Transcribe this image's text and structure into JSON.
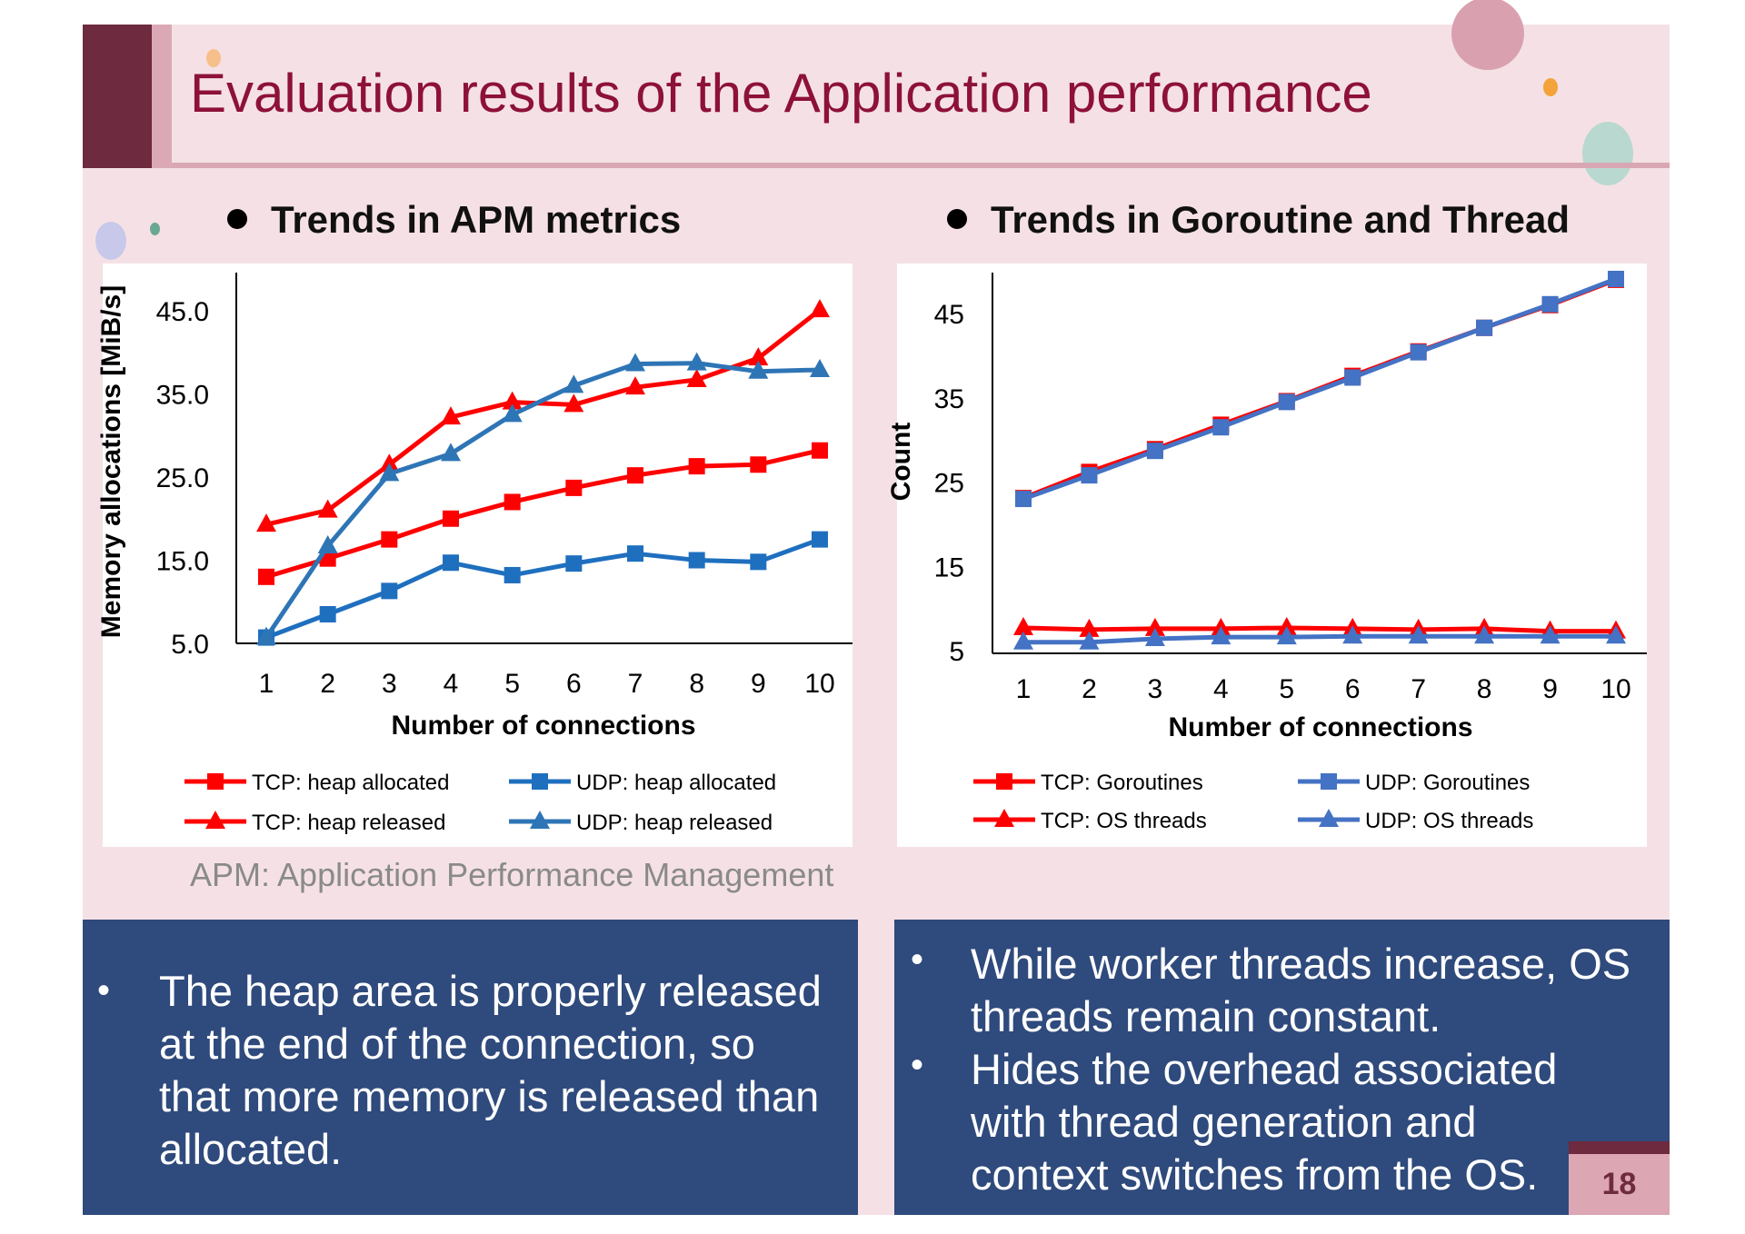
{
  "slide": {
    "title": "Evaluation results of the Application performance",
    "left_heading": "Trends in APM metrics",
    "right_heading": "Trends in Goroutine and Thread",
    "note": "APM: Application Performance Management",
    "page_number": "18",
    "left_bullets": [
      [
        "The heap area is properly released",
        "at the end of the connection, so",
        "that more memory is released than",
        "allocated."
      ]
    ],
    "right_bullets": [
      [
        "While worker threads increase, OS",
        "threads remain constant."
      ],
      [
        "Hides the overhead associated",
        "with thread generation and",
        "context switches from the OS."
      ]
    ],
    "bullet_glyph": "•"
  },
  "colors": {
    "tcp": "#ff0000",
    "udp_left": "#1f6fbf",
    "udp_right": "#4472c4",
    "udp_released": "#2e75b6",
    "title": "#8d1139",
    "box": "#2f4a7c"
  },
  "chart_data": [
    {
      "type": "line",
      "xlabel": "Number of connections",
      "ylabel": "Memory allocations [MiB/s]",
      "x": [
        1,
        2,
        3,
        4,
        5,
        6,
        7,
        8,
        9,
        10
      ],
      "yticks": [
        "5.0",
        "15.0",
        "25.0",
        "35.0",
        "45.0"
      ],
      "ylim": [
        5,
        45
      ],
      "legend": "bottom",
      "series": [
        {
          "name": "TCP: heap allocated",
          "marker": "square",
          "color": "#ff0000",
          "values": [
            13.0,
            15.2,
            17.5,
            20.0,
            22.0,
            23.7,
            25.2,
            26.3,
            26.5,
            28.2
          ]
        },
        {
          "name": "UDP: heap allocated",
          "marker": "square",
          "color": "#1f6fbf",
          "values": [
            5.7,
            8.5,
            11.3,
            14.7,
            13.2,
            14.6,
            15.8,
            15.0,
            14.8,
            17.5
          ]
        },
        {
          "name": "TCP: heap released",
          "marker": "triangle",
          "color": "#ff0000",
          "values": [
            19.3,
            21.0,
            26.5,
            32.2,
            34.0,
            33.7,
            35.8,
            36.7,
            39.3,
            45.1
          ]
        },
        {
          "name": "UDP: heap released",
          "marker": "triangle",
          "color": "#2e75b6",
          "values": [
            5.7,
            16.7,
            25.4,
            27.8,
            32.5,
            36.0,
            38.6,
            38.7,
            37.7,
            37.9
          ]
        }
      ]
    },
    {
      "type": "line",
      "xlabel": "Number of connections",
      "ylabel": "Count",
      "x": [
        1,
        2,
        3,
        4,
        5,
        6,
        7,
        8,
        9,
        10
      ],
      "yticks": [
        "5",
        "15",
        "25",
        "35",
        "45"
      ],
      "ylim": [
        5,
        45
      ],
      "legend": "bottom",
      "series": [
        {
          "name": "TCP: Goroutines",
          "marker": "square",
          "color": "#ff0000",
          "values": [
            23.1,
            26.2,
            28.9,
            31.8,
            34.6,
            37.6,
            40.5,
            43.3,
            46.0,
            49.0
          ]
        },
        {
          "name": "UDP: Goroutines",
          "marker": "square",
          "color": "#4472c4",
          "values": [
            23.0,
            25.8,
            28.7,
            31.5,
            34.5,
            37.4,
            40.4,
            43.3,
            46.1,
            49.1
          ]
        },
        {
          "name": "TCP: OS threads",
          "marker": "triangle",
          "color": "#ff0000",
          "values": [
            7.7,
            7.5,
            7.6,
            7.6,
            7.7,
            7.6,
            7.5,
            7.6,
            7.3,
            7.3
          ]
        },
        {
          "name": "UDP: OS threads",
          "marker": "triangle",
          "color": "#4472c4",
          "values": [
            6.0,
            6.0,
            6.4,
            6.6,
            6.6,
            6.7,
            6.7,
            6.7,
            6.7,
            6.7
          ]
        }
      ]
    }
  ]
}
